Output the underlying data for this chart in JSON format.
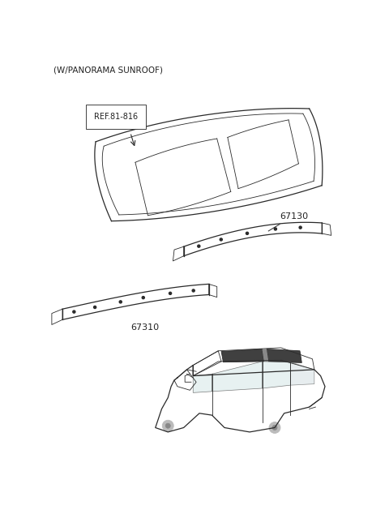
{
  "title": "(W/PANORAMA SUNROOF)",
  "background_color": "#ffffff",
  "line_color": "#2a2a2a",
  "ref_label": "REF.81-816",
  "part1_label": "67130",
  "part2_label": "67310",
  "figsize": [
    4.8,
    6.55
  ],
  "dpi": 100
}
